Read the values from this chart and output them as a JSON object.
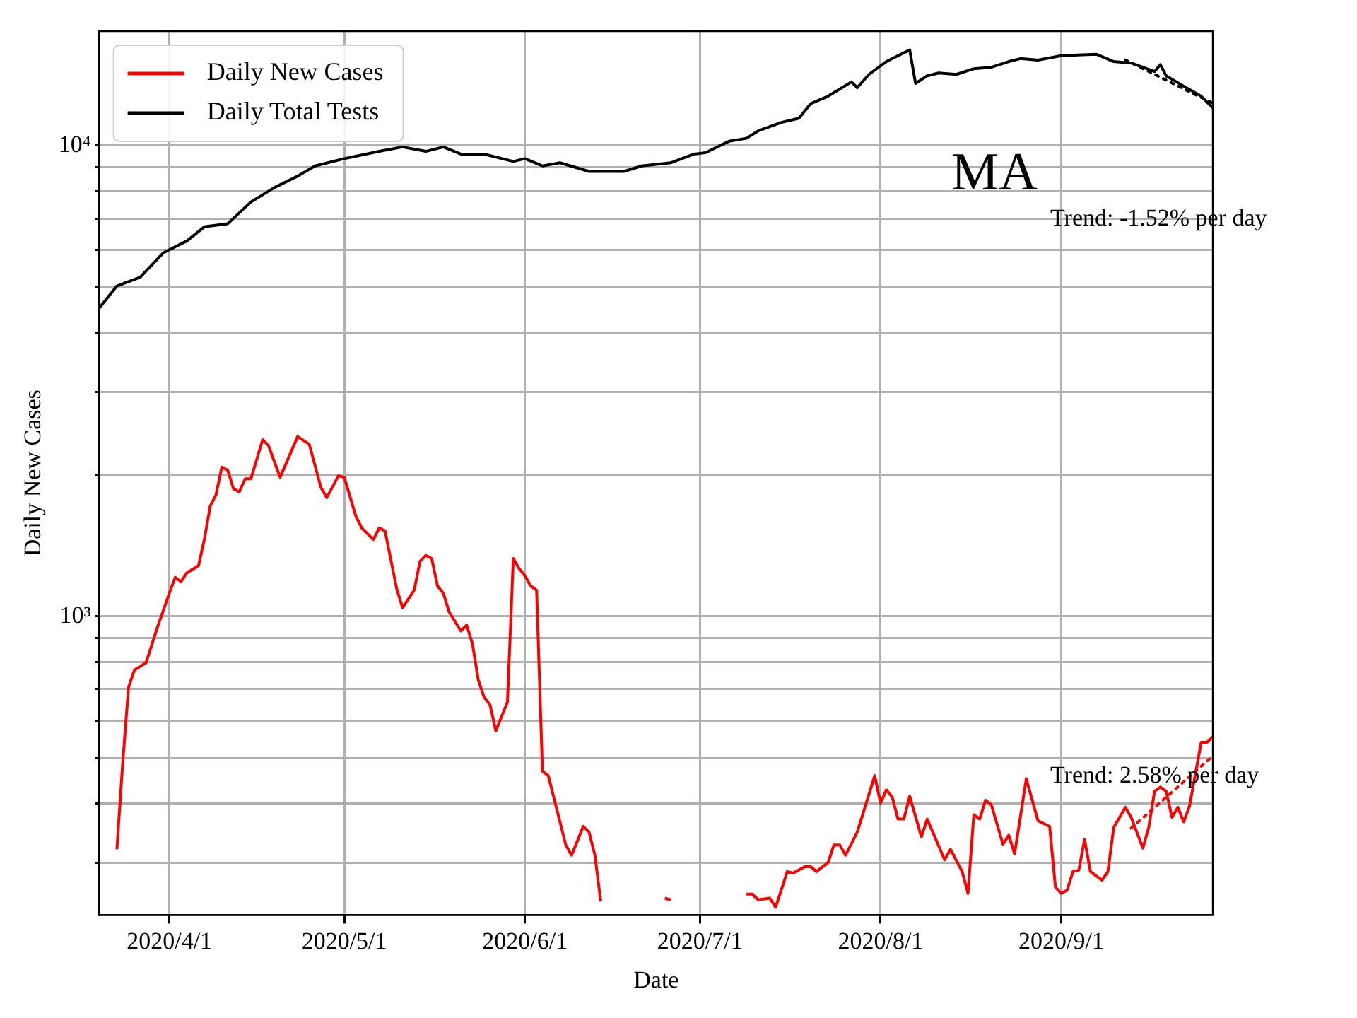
{
  "chart_data": {
    "type": "line",
    "xlabel": "Date",
    "ylabel": "Daily New Cases",
    "log": "y",
    "grid": true,
    "legend": "top left",
    "marker": "none",
    "xlim": [
      "2020-03-20",
      "2020-09-27"
    ],
    "xticks": [
      {
        "value": "2020-04-01",
        "label": "2020/4/1"
      },
      {
        "value": "2020-05-01",
        "label": "2020/5/1"
      },
      {
        "value": "2020-06-01",
        "label": "2020/6/1"
      },
      {
        "value": "2020-07-01",
        "label": "2020/7/1"
      },
      {
        "value": "2020-08-01",
        "label": "2020/8/1"
      },
      {
        "value": "2020-09-01",
        "label": "2020/9/1"
      }
    ],
    "ylim": [
      232,
      17500
    ],
    "yticks": [
      {
        "value": 300,
        "label": null
      },
      {
        "value": 400,
        "label": null
      },
      {
        "value": 500,
        "label": null
      },
      {
        "value": 600,
        "label": null
      },
      {
        "value": 700,
        "label": null
      },
      {
        "value": 800,
        "label": null
      },
      {
        "value": 900,
        "label": null
      },
      {
        "value": 1000,
        "label": "10³"
      },
      {
        "value": 2000,
        "label": null
      },
      {
        "value": 3000,
        "label": null
      },
      {
        "value": 4000,
        "label": null
      },
      {
        "value": 5000,
        "label": null
      },
      {
        "value": 6000,
        "label": null
      },
      {
        "value": 7000,
        "label": null
      },
      {
        "value": 8000,
        "label": null
      },
      {
        "value": 9000,
        "label": null
      },
      {
        "value": 10000,
        "label": "10⁴"
      }
    ],
    "annotations": [
      "MA",
      "Trend: -1.52% per day",
      "Trend: 2.58% per day"
    ],
    "series": [
      {
        "name": "Daily New Cases",
        "color": "#ff0000",
        "line_style": "solid",
        "x": [
          "2020-03-23",
          "2020-03-24",
          "2020-03-25",
          "2020-03-26",
          "2020-03-28",
          "2020-03-30",
          "2020-04-01",
          "2020-04-02",
          "2020-04-03",
          "2020-04-04",
          "2020-04-06",
          "2020-04-07",
          "2020-04-08",
          "2020-04-09",
          "2020-04-10",
          "2020-04-11",
          "2020-04-12",
          "2020-04-13",
          "2020-04-14",
          "2020-04-15",
          "2020-04-17",
          "2020-04-18",
          "2020-04-20",
          "2020-04-23",
          "2020-04-25",
          "2020-04-27",
          "2020-04-28",
          "2020-04-30",
          "2020-05-01",
          "2020-05-03",
          "2020-05-04",
          "2020-05-06",
          "2020-05-07",
          "2020-05-08",
          "2020-05-10",
          "2020-05-11",
          "2020-05-13",
          "2020-05-14",
          "2020-05-15",
          "2020-05-16",
          "2020-05-17",
          "2020-05-18",
          "2020-05-19",
          "2020-05-21",
          "2020-05-22",
          "2020-05-23",
          "2020-05-24",
          "2020-05-25",
          "2020-05-26",
          "2020-05-27",
          "2020-05-29",
          "2020-05-30",
          "2020-05-31",
          "2020-06-01",
          "2020-06-02",
          "2020-06-03",
          "2020-06-04",
          "2020-06-05",
          "2020-06-08",
          "2020-06-09",
          "2020-06-11",
          "2020-06-12",
          "2020-06-13",
          "2020-06-14",
          "2020-06-15",
          "2020-06-16",
          "2020-06-17",
          "2020-06-18",
          "2020-06-19",
          "2020-06-24",
          "2020-06-25",
          "2020-06-26",
          "2020-06-27",
          "2020-06-28",
          "2020-07-08",
          "2020-07-09",
          "2020-07-10",
          "2020-07-11",
          "2020-07-13",
          "2020-07-14",
          "2020-07-16",
          "2020-07-17",
          "2020-07-19",
          "2020-07-20",
          "2020-07-21",
          "2020-07-23",
          "2020-07-24",
          "2020-07-25",
          "2020-07-26",
          "2020-07-28",
          "2020-07-31",
          "2020-08-01",
          "2020-08-02",
          "2020-08-03",
          "2020-08-04",
          "2020-08-05",
          "2020-08-06",
          "2020-08-08",
          "2020-08-09",
          "2020-08-12",
          "2020-08-13",
          "2020-08-15",
          "2020-08-16",
          "2020-08-17",
          "2020-08-18",
          "2020-08-19",
          "2020-08-20",
          "2020-08-22",
          "2020-08-23",
          "2020-08-24",
          "2020-08-26",
          "2020-08-28",
          "2020-08-30",
          "2020-08-31",
          "2020-09-01",
          "2020-09-02",
          "2020-09-03",
          "2020-09-04",
          "2020-09-05",
          "2020-09-06",
          "2020-09-08",
          "2020-09-09",
          "2020-09-10",
          "2020-09-12",
          "2020-09-13",
          "2020-09-15",
          "2020-09-16",
          "2020-09-17",
          "2020-09-18",
          "2020-09-19",
          "2020-09-20",
          "2020-09-21",
          "2020-09-22",
          "2020-09-23",
          "2020-09-25",
          "2020-09-26",
          "2020-09-27"
        ],
        "values": [
          320,
          489,
          707,
          769,
          797,
          952,
          1120,
          1210,
          1185,
          1237,
          1281,
          1456,
          1713,
          1812,
          2075,
          2045,
          1866,
          1838,
          1960,
          1960,
          2372,
          2305,
          1974,
          2408,
          2320,
          1879,
          1787,
          1988,
          1974,
          1630,
          1541,
          1456,
          1541,
          1518,
          1144,
          1043,
          1136,
          1309,
          1347,
          1327,
          1160,
          1120,
          1021,
          931,
          958,
          874,
          732,
          673,
          649,
          571,
          658,
          1327,
          1263,
          1219,
          1160,
          1136,
          469,
          459,
          327,
          311,
          358,
          348,
          311,
          248,
          null,
          null,
          null,
          null,
          null,
          null,
          252,
          250,
          null,
          null,
          null,
          257,
          257,
          250,
          252,
          241,
          287,
          285,
          294,
          294,
          287,
          300,
          327,
          327,
          311,
          348,
          459,
          401,
          428,
          413,
          371,
          371,
          415,
          340,
          371,
          304,
          320,
          287,
          258,
          379,
          371,
          407,
          398,
          328,
          343,
          313,
          452,
          368,
          358,
          266,
          258,
          262,
          287,
          289,
          336,
          287,
          275,
          287,
          356,
          393,
          374,
          322,
          356,
          425,
          434,
          425,
          374,
          393,
          366,
          395,
          540,
          540,
          555
        ]
      },
      {
        "name": "Daily Total Tests",
        "color": "#000000",
        "line_style": "solid",
        "x": [
          "2020-03-20",
          "2020-03-23",
          "2020-03-27",
          "2020-03-31",
          "2020-04-04",
          "2020-04-07",
          "2020-04-11",
          "2020-04-15",
          "2020-04-19",
          "2020-04-23",
          "2020-04-26",
          "2020-05-01",
          "2020-05-07",
          "2020-05-11",
          "2020-05-15",
          "2020-05-18",
          "2020-05-21",
          "2020-05-25",
          "2020-05-30",
          "2020-06-01",
          "2020-06-04",
          "2020-06-07",
          "2020-06-12",
          "2020-06-18",
          "2020-06-21",
          "2020-06-26",
          "2020-06-30",
          "2020-07-02",
          "2020-07-06",
          "2020-07-09",
          "2020-07-11",
          "2020-07-15",
          "2020-07-18",
          "2020-07-20",
          "2020-07-23",
          "2020-07-25",
          "2020-07-27",
          "2020-07-28",
          "2020-07-30",
          "2020-08-02",
          "2020-08-04",
          "2020-08-06",
          "2020-08-07",
          "2020-08-09",
          "2020-08-11",
          "2020-08-14",
          "2020-08-17",
          "2020-08-20",
          "2020-08-23",
          "2020-08-25",
          "2020-08-28",
          "2020-09-01",
          "2020-09-07",
          "2020-09-10",
          "2020-09-13",
          "2020-09-17",
          "2020-09-18",
          "2020-09-19",
          "2020-09-22",
          "2020-09-25",
          "2020-09-27"
        ],
        "values": [
          4520,
          5030,
          5250,
          5920,
          6270,
          6720,
          6820,
          7590,
          8140,
          8610,
          9050,
          9380,
          9720,
          9930,
          9720,
          9930,
          9590,
          9590,
          9250,
          9380,
          9050,
          9190,
          8810,
          8810,
          9050,
          9190,
          9590,
          9660,
          10210,
          10360,
          10740,
          11200,
          11430,
          12270,
          12730,
          13180,
          13650,
          13270,
          14160,
          15080,
          15520,
          15960,
          13550,
          14060,
          14260,
          14160,
          14560,
          14660,
          15080,
          15300,
          15190,
          15520,
          15630,
          15080,
          14970,
          14360,
          14860,
          14060,
          13370,
          12730,
          12020
        ]
      },
      {
        "color": "#000000",
        "line_style": "dotted",
        "x": [
          "2020-09-12",
          "2020-09-27"
        ],
        "values": [
          15200,
          12300
        ]
      },
      {
        "color": "#ff0000",
        "line_style": "dotted",
        "x": [
          "2020-09-13",
          "2020-09-27"
        ],
        "values": [
          355,
          505
        ]
      }
    ]
  }
}
